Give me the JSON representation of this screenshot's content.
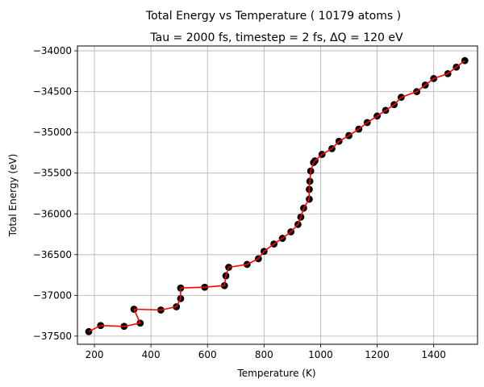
{
  "chart_data": {
    "type": "scatter",
    "title": "Total Energy vs Temperature ( 10179 atoms )",
    "subtitle": "Tau = 2000 fs, timestep = 2 fs, ΔQ = 120 eV",
    "xlabel": "Temperature (K)",
    "ylabel": "Total Energy (eV)",
    "xlim": [
      140,
      1555
    ],
    "ylim": [
      -37600,
      -33940
    ],
    "xticks": [
      200,
      400,
      600,
      800,
      1000,
      1200,
      1400
    ],
    "yticks": [
      -37500,
      -37000,
      -36500,
      -36000,
      -35500,
      -35000,
      -34500,
      -34000
    ],
    "xtick_labels": [
      "200",
      "400",
      "600",
      "800",
      "1000",
      "1200",
      "1400"
    ],
    "ytick_labels": [
      "−37500",
      "−37000",
      "−36500",
      "−36000",
      "−35500",
      "−35000",
      "−34500",
      "−34000"
    ],
    "grid": true,
    "colors": {
      "line": "#ff0000",
      "marker": "#000000",
      "grid": "#b0b0b0"
    },
    "series": [
      {
        "x": [
          180,
          222,
          305,
          362,
          340,
          435,
          490,
          505,
          505,
          590,
          660,
          665,
          675,
          740,
          780,
          800,
          835,
          865,
          895,
          920,
          930,
          940,
          960,
          960,
          962,
          965,
          975,
          980,
          1005,
          1040,
          1065,
          1100,
          1135,
          1165,
          1200,
          1230,
          1260,
          1285,
          1340,
          1370,
          1400,
          1450,
          1480,
          1510
        ],
        "y": [
          -37445,
          -37370,
          -37380,
          -37340,
          -37170,
          -37180,
          -37140,
          -37040,
          -36910,
          -36900,
          -36880,
          -36760,
          -36655,
          -36620,
          -36550,
          -36460,
          -36370,
          -36300,
          -36220,
          -36130,
          -36040,
          -35930,
          -35820,
          -35700,
          -35600,
          -35475,
          -35370,
          -35350,
          -35270,
          -35200,
          -35110,
          -35040,
          -34960,
          -34880,
          -34800,
          -34730,
          -34660,
          -34570,
          -34500,
          -34420,
          -34340,
          -34280,
          -34200,
          -34120
        ]
      }
    ]
  }
}
